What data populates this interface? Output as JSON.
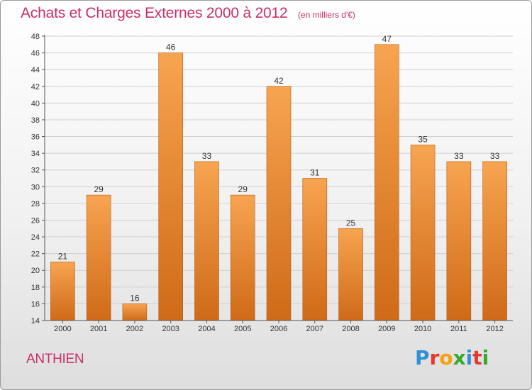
{
  "header": {
    "title": "Achats et Charges Externes 2000 à 2012",
    "subtitle": "(en milliers d'€)"
  },
  "footer": {
    "city": "ANTHIEN",
    "brand": "Proxiti"
  },
  "colors": {
    "title": "#c8306a",
    "bar_light": "#f7a450",
    "bar_dark": "#cf6a18",
    "grid": "#d0d0d0",
    "axis": "#555555",
    "brand_letters": [
      "#2f8fd8",
      "#e8382a",
      "#f5a10a",
      "#36a82a",
      "#2f8fd8",
      "#e8382a",
      "#36a82a"
    ]
  },
  "chart_data": {
    "type": "bar",
    "categories": [
      "2000",
      "2001",
      "2002",
      "2003",
      "2004",
      "2005",
      "2006",
      "2007",
      "2008",
      "2009",
      "2010",
      "2011",
      "2012"
    ],
    "values": [
      21,
      29,
      16,
      46,
      33,
      29,
      42,
      31,
      25,
      47,
      35,
      33,
      33
    ],
    "data_labels": [
      "21",
      "29",
      "16",
      "46",
      "33",
      "29",
      "42",
      "31",
      "25",
      "47",
      "35",
      "33",
      "33"
    ],
    "ylim": [
      14,
      48
    ],
    "yticks": [
      "14",
      "16",
      "18",
      "20",
      "22",
      "24",
      "26",
      "28",
      "30",
      "32",
      "34",
      "36",
      "38",
      "40",
      "42",
      "44",
      "46",
      "48"
    ],
    "grid": true,
    "legend": "none"
  }
}
